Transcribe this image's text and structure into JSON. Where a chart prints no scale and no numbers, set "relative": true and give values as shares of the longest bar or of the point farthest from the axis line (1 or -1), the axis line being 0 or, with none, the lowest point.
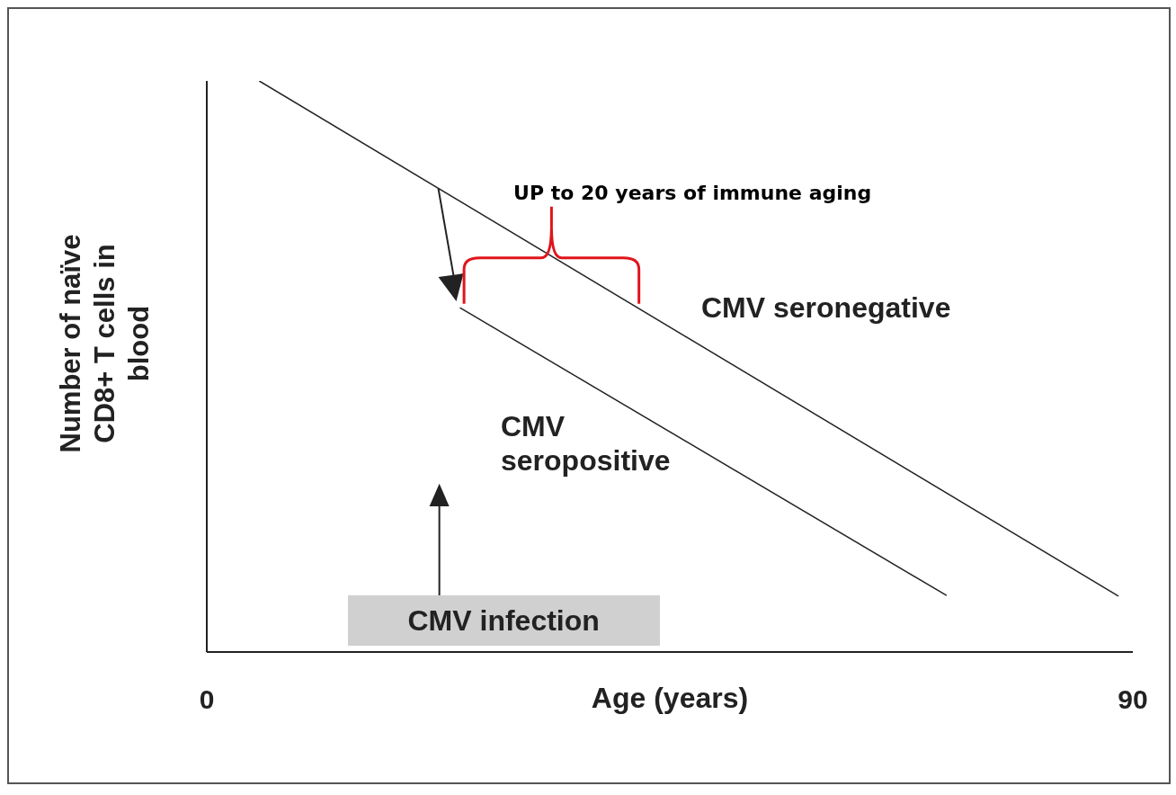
{
  "chart_data": {
    "type": "line",
    "relative": true,
    "xlabel": "Age (years)",
    "ylabel": "Number of naïve CD8+ T cells in blood",
    "xlim": [
      0,
      90
    ],
    "xticks": [
      0,
      90
    ],
    "series": [
      {
        "name": "CMV seronegative",
        "color": "#222222",
        "x": [
          5.1,
          88.6
        ],
        "values": [
          1,
          0.098
        ]
      },
      {
        "name": "CMV seropositive",
        "color": "#222222",
        "x": [
          24.6,
          71.9
        ],
        "values": [
          0.603,
          0.099
        ]
      }
    ],
    "annotations": [
      "UP to 20 years of immune aging",
      "CMV infection"
    ]
  }
}
